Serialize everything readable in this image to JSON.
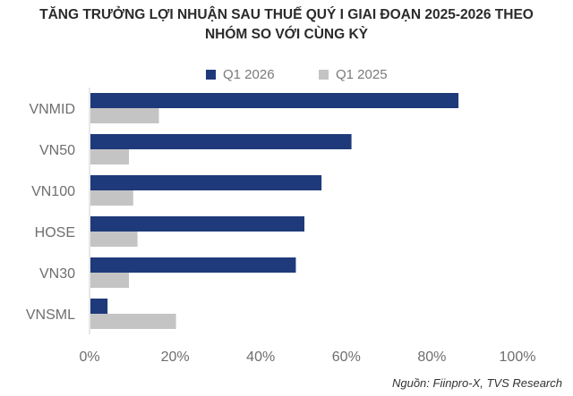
{
  "title_line1": "TĂNG TRƯỞNG LỢI NHUẬN SAU THUẾ QUÝ I GIAI ĐOẠN 2025-2026 THEO",
  "title_line2": "NHÓM SO VỚI CÙNG KỲ",
  "source": "Nguồn: Fiinpro-X, TVS Research",
  "colors": {
    "q1_2026": "#1f3a7a",
    "q1_2025": "#c4c4c4"
  },
  "chart_data": {
    "type": "bar",
    "orientation": "horizontal",
    "categories": [
      "VNMID",
      "VN50",
      "VN100",
      "HOSE",
      "VN30",
      "VNSML"
    ],
    "series": [
      {
        "name": "Q1 2026",
        "values": [
          86,
          61,
          54,
          50,
          48,
          4
        ]
      },
      {
        "name": "Q1 2025",
        "values": [
          16,
          9,
          10,
          11,
          9,
          20
        ]
      }
    ],
    "xlim": [
      0,
      100
    ],
    "x_ticks": [
      "0%",
      "20%",
      "40%",
      "60%",
      "80%",
      "100%"
    ],
    "legend_position": "top",
    "grid": false
  }
}
